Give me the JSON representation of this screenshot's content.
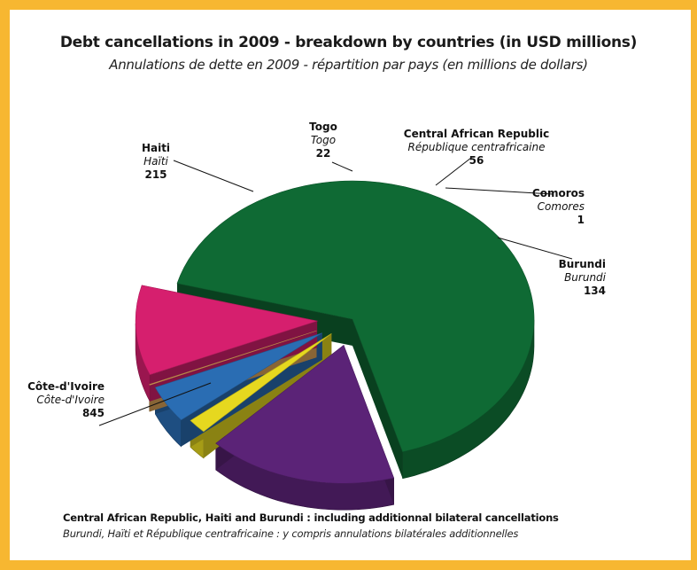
{
  "chart_data": {
    "type": "pie",
    "title": "Debt cancellations in 2009 - breakdown by countries (in USD millions)",
    "subtitle": "Annulations de dette en 2009 - répartition par pays (en millions de dollars)",
    "slices": [
      {
        "label": "Côte-d'Ivoire",
        "label_fr": "Côte-d'Ivoire",
        "value": 845,
        "color": "#0f6a34"
      },
      {
        "label": "Haiti",
        "label_fr": "Haïti",
        "value": 215,
        "color": "#5b2377"
      },
      {
        "label": "Togo",
        "label_fr": "Togo",
        "value": 22,
        "color": "#e6d81f"
      },
      {
        "label": "Central African Republic",
        "label_fr": "République centrafricaine",
        "value": 56,
        "color": "#2a6db3"
      },
      {
        "label": "Comoros",
        "label_fr": "Comores",
        "value": 1,
        "color": "#e3a95a"
      },
      {
        "label": "Burundi",
        "label_fr": "Burundi",
        "value": 134,
        "color": "#d61f6e"
      }
    ]
  },
  "note": {
    "en": "Central African Republic, Haiti and Burundi : including additionnal bilateral cancellations",
    "fr": "Burundi, Haïti et République centrafricaine : y compris annulations bilatérales additionnelles"
  },
  "accent_color": "#f7b731"
}
